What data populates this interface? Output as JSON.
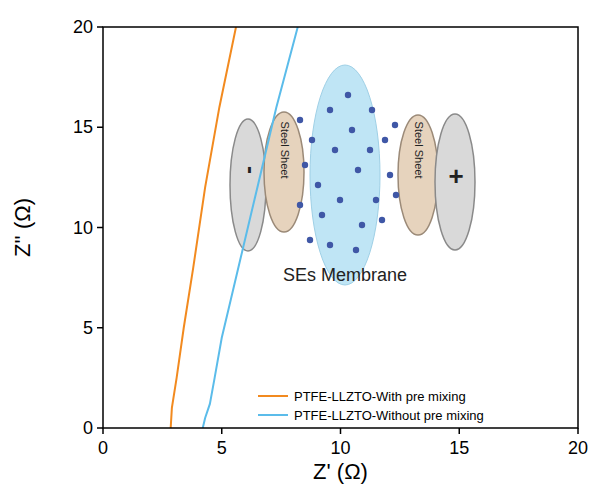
{
  "chart_data": {
    "type": "line",
    "x_label": "Z' (Ω)",
    "y_label": "Z'' (Ω)",
    "xlim": [
      0,
      20
    ],
    "xticks": [
      0,
      5,
      10,
      15,
      20
    ],
    "ylim": [
      0,
      20
    ],
    "yticks": [
      0,
      5,
      10,
      15,
      20
    ],
    "grid": false,
    "legend": "lower right",
    "annotations": [
      "Steel Sheet",
      "Steel Sheet",
      "SEs Membrane",
      "-",
      "+"
    ],
    "series": [
      {
        "name": "PTFE-LLZTO-With pre mixing",
        "color": "#f28a1f",
        "line_style": "solid",
        "x": [
          2.85,
          2.9,
          3.1,
          3.4,
          3.8,
          4.3,
          4.9,
          5.6
        ],
        "values": [
          0,
          1,
          2.5,
          5,
          8,
          12,
          16,
          20
        ]
      },
      {
        "name": "PTFE-LLZTO-Without pre mixing",
        "color": "#5bbcea",
        "line_style": "solid",
        "x": [
          4.2,
          4.3,
          4.5,
          4.7,
          5.0,
          5.3,
          5.8,
          6.5,
          7.3,
          8.2
        ],
        "values": [
          0,
          0.5,
          1.2,
          2.5,
          4.5,
          6,
          8.5,
          12,
          16,
          20
        ]
      }
    ]
  }
}
